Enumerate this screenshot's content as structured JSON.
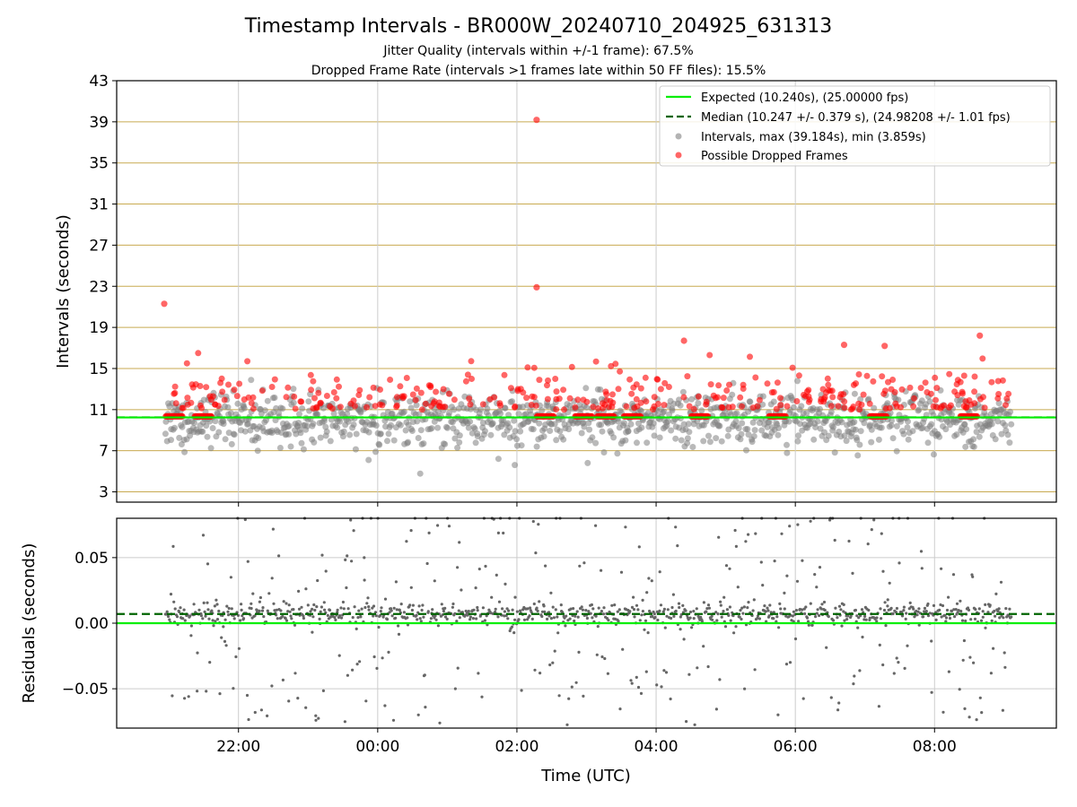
{
  "figure": {
    "title": "Timestamp Intervals - BR000W_20240710_204925_631313",
    "subtitle_1": "Jitter Quality (intervals within +/-1 frame): 67.5%",
    "subtitle_2": "Dropped Frame Rate (intervals >1 frames late within 50 FF files): 15.5%"
  },
  "colors": {
    "expected": "#00ee00",
    "median": "#006400",
    "intervals": "#808080",
    "dropped": "#ff0000",
    "grid_top": "#c8aa50",
    "grid": "#cccccc"
  },
  "chart_data": [
    {
      "type": "scatter",
      "ylabel": "Intervals (seconds)",
      "ylim": [
        2,
        43
      ],
      "yticks": [
        "3",
        "7",
        "11",
        "15",
        "19",
        "23",
        "27",
        "31",
        "35",
        "39",
        "43"
      ],
      "xlim_hours": [
        -3.75,
        9.75
      ],
      "grid": true,
      "legend_placement": "top-right",
      "legend": {
        "expected": "Expected (10.240s), (25.00000 fps)",
        "median": "Median (10.247 +/- 0.379 s), (24.98208 +/- 1.01 fps)",
        "intervals": "Intervals, max (39.184s), min (3.859s)",
        "dropped": "Possible Dropped Frames"
      },
      "reference_lines": {
        "expected": 10.24,
        "median": 10.247
      },
      "data_range_hours": [
        -3.05,
        9.1
      ],
      "max_interval": 39.184,
      "min_interval": 3.859,
      "notable_points": [
        {
          "x_time": "20:56",
          "y": 21.3,
          "kind": "dropped"
        },
        {
          "x_time": "02:17",
          "y": 39.184,
          "kind": "dropped"
        },
        {
          "x_time": "02:17",
          "y": 22.9,
          "kind": "dropped"
        },
        {
          "x_time": "04:24",
          "y": 17.7,
          "kind": "dropped"
        },
        {
          "x_time": "06:42",
          "y": 17.3,
          "kind": "dropped"
        },
        {
          "x_time": "07:17",
          "y": 17.2,
          "kind": "dropped"
        },
        {
          "x_time": "08:39",
          "y": 18.2,
          "kind": "dropped"
        }
      ],
      "dropped_clusters_times": [
        "21:05",
        "21:30",
        "02:25",
        "02:58",
        "03:17",
        "03:40",
        "04:38",
        "05:45",
        "07:12",
        "08:30"
      ]
    },
    {
      "type": "scatter",
      "ylabel": "Residuals (seconds)",
      "xlabel": "Time (UTC)",
      "ylim": [
        -0.08,
        0.08
      ],
      "yticks": [
        "−0.05",
        "0.00",
        "0.05"
      ],
      "xticks": [
        "22:00",
        "00:00",
        "02:00",
        "04:00",
        "06:00",
        "08:00"
      ],
      "xtick_hours": [
        -2,
        0,
        2,
        4,
        6,
        8
      ],
      "grid": true,
      "reference_lines": {
        "expected": 0.0,
        "median": 0.007
      },
      "residual_center": 0.007
    }
  ]
}
